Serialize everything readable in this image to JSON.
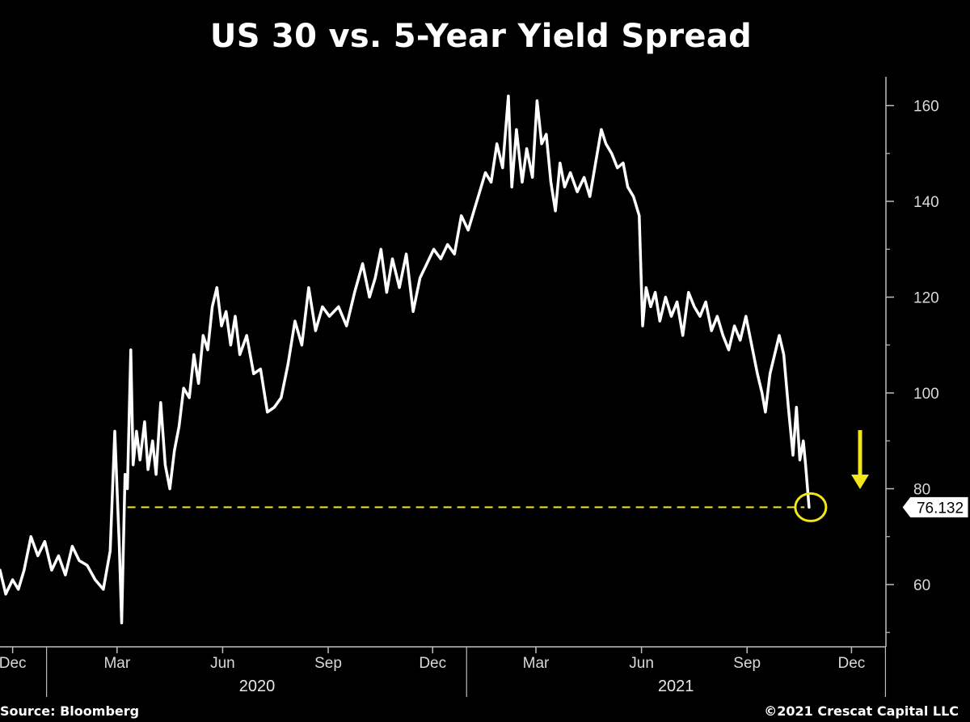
{
  "chart_data": {
    "type": "line",
    "title": "US 30 vs. 5-Year Yield Spread",
    "xlabel": "",
    "ylabel": "",
    "x_range": [
      "2019-11-20",
      "2021-12-31"
    ],
    "ylim": [
      47,
      166
    ],
    "y_ticks": [
      60,
      80,
      100,
      120,
      140,
      160
    ],
    "month_ticks": [
      {
        "date": "2019-12-01",
        "label": "Dec"
      },
      {
        "date": "2020-03-01",
        "label": "Mar"
      },
      {
        "date": "2020-06-01",
        "label": "Jun"
      },
      {
        "date": "2020-09-01",
        "label": "Sep"
      },
      {
        "date": "2020-12-01",
        "label": "Dec"
      },
      {
        "date": "2021-03-01",
        "label": "Mar"
      },
      {
        "date": "2021-06-01",
        "label": "Jun"
      },
      {
        "date": "2021-09-01",
        "label": "Sep"
      },
      {
        "date": "2021-12-01",
        "label": "Dec"
      }
    ],
    "year_labels": [
      {
        "date": "2020-07-01",
        "label": "2020"
      },
      {
        "date": "2021-07-01",
        "label": "2021"
      }
    ],
    "grid": false,
    "series": [
      {
        "color": "#ffffff",
        "points": [
          [
            "2019-11-20",
            63
          ],
          [
            "2019-11-25",
            58
          ],
          [
            "2019-12-01",
            61
          ],
          [
            "2019-12-06",
            59
          ],
          [
            "2019-12-11",
            63
          ],
          [
            "2019-12-17",
            70
          ],
          [
            "2019-12-23",
            66
          ],
          [
            "2019-12-29",
            69
          ],
          [
            "2020-01-04",
            63
          ],
          [
            "2020-01-10",
            66
          ],
          [
            "2020-01-16",
            62
          ],
          [
            "2020-01-22",
            68
          ],
          [
            "2020-01-28",
            65
          ],
          [
            "2020-02-04",
            64
          ],
          [
            "2020-02-11",
            61
          ],
          [
            "2020-02-18",
            59
          ],
          [
            "2020-02-24",
            67
          ],
          [
            "2020-02-28",
            92
          ],
          [
            "2020-03-03",
            68
          ],
          [
            "2020-03-05",
            52
          ],
          [
            "2020-03-08",
            83
          ],
          [
            "2020-03-10",
            80
          ],
          [
            "2020-03-13",
            109
          ],
          [
            "2020-03-15",
            85
          ],
          [
            "2020-03-18",
            92
          ],
          [
            "2020-03-21",
            86
          ],
          [
            "2020-03-25",
            94
          ],
          [
            "2020-03-28",
            84
          ],
          [
            "2020-04-01",
            90
          ],
          [
            "2020-04-04",
            83
          ],
          [
            "2020-04-08",
            98
          ],
          [
            "2020-04-12",
            85
          ],
          [
            "2020-04-16",
            80
          ],
          [
            "2020-04-20",
            88
          ],
          [
            "2020-04-24",
            93
          ],
          [
            "2020-04-28",
            101
          ],
          [
            "2020-05-03",
            99
          ],
          [
            "2020-05-07",
            108
          ],
          [
            "2020-05-11",
            102
          ],
          [
            "2020-05-15",
            112
          ],
          [
            "2020-05-19",
            109
          ],
          [
            "2020-05-23",
            118
          ],
          [
            "2020-05-27",
            122
          ],
          [
            "2020-05-31",
            114
          ],
          [
            "2020-06-04",
            117
          ],
          [
            "2020-06-08",
            110
          ],
          [
            "2020-06-12",
            116
          ],
          [
            "2020-06-16",
            108
          ],
          [
            "2020-06-22",
            112
          ],
          [
            "2020-06-28",
            104
          ],
          [
            "2020-07-04",
            105
          ],
          [
            "2020-07-10",
            96
          ],
          [
            "2020-07-16",
            97
          ],
          [
            "2020-07-22",
            99
          ],
          [
            "2020-07-28",
            106
          ],
          [
            "2020-08-03",
            115
          ],
          [
            "2020-08-09",
            110
          ],
          [
            "2020-08-15",
            122
          ],
          [
            "2020-08-21",
            113
          ],
          [
            "2020-08-27",
            118
          ],
          [
            "2020-09-02",
            116
          ],
          [
            "2020-09-10",
            118
          ],
          [
            "2020-09-17",
            114
          ],
          [
            "2020-09-24",
            121
          ],
          [
            "2020-10-01",
            127
          ],
          [
            "2020-10-07",
            120
          ],
          [
            "2020-10-12",
            124
          ],
          [
            "2020-10-17",
            130
          ],
          [
            "2020-10-22",
            121
          ],
          [
            "2020-10-27",
            128
          ],
          [
            "2020-11-02",
            122
          ],
          [
            "2020-11-08",
            129
          ],
          [
            "2020-11-14",
            117
          ],
          [
            "2020-11-20",
            124
          ],
          [
            "2020-11-26",
            127
          ],
          [
            "2020-12-02",
            130
          ],
          [
            "2020-12-08",
            128
          ],
          [
            "2020-12-14",
            131
          ],
          [
            "2020-12-20",
            129
          ],
          [
            "2020-12-26",
            137
          ],
          [
            "2021-01-01",
            134
          ],
          [
            "2021-01-06",
            138
          ],
          [
            "2021-01-11",
            142
          ],
          [
            "2021-01-16",
            146
          ],
          [
            "2021-01-21",
            144
          ],
          [
            "2021-01-26",
            152
          ],
          [
            "2021-01-31",
            147
          ],
          [
            "2021-02-05",
            162
          ],
          [
            "2021-02-08",
            143
          ],
          [
            "2021-02-12",
            155
          ],
          [
            "2021-02-17",
            144
          ],
          [
            "2021-02-21",
            151
          ],
          [
            "2021-02-26",
            145
          ],
          [
            "2021-03-02",
            161
          ],
          [
            "2021-03-06",
            152
          ],
          [
            "2021-03-10",
            154
          ],
          [
            "2021-03-14",
            144
          ],
          [
            "2021-03-18",
            138
          ],
          [
            "2021-03-22",
            148
          ],
          [
            "2021-03-26",
            143
          ],
          [
            "2021-03-31",
            146
          ],
          [
            "2021-04-06",
            142
          ],
          [
            "2021-04-12",
            145
          ],
          [
            "2021-04-17",
            141
          ],
          [
            "2021-04-22",
            148
          ],
          [
            "2021-04-27",
            155
          ],
          [
            "2021-05-01",
            152
          ],
          [
            "2021-05-06",
            150
          ],
          [
            "2021-05-11",
            147
          ],
          [
            "2021-05-16",
            148
          ],
          [
            "2021-05-20",
            143
          ],
          [
            "2021-05-25",
            141
          ],
          [
            "2021-05-30",
            137
          ],
          [
            "2021-06-02",
            114
          ],
          [
            "2021-06-05",
            122
          ],
          [
            "2021-06-09",
            118
          ],
          [
            "2021-06-13",
            121
          ],
          [
            "2021-06-17",
            115
          ],
          [
            "2021-06-22",
            120
          ],
          [
            "2021-06-27",
            116
          ],
          [
            "2021-07-02",
            119
          ],
          [
            "2021-07-07",
            112
          ],
          [
            "2021-07-12",
            121
          ],
          [
            "2021-07-17",
            118
          ],
          [
            "2021-07-22",
            116
          ],
          [
            "2021-07-27",
            119
          ],
          [
            "2021-08-01",
            113
          ],
          [
            "2021-08-06",
            116
          ],
          [
            "2021-08-11",
            112
          ],
          [
            "2021-08-16",
            109
          ],
          [
            "2021-08-21",
            114
          ],
          [
            "2021-08-26",
            111
          ],
          [
            "2021-08-31",
            116
          ],
          [
            "2021-09-05",
            110
          ],
          [
            "2021-09-10",
            104
          ],
          [
            "2021-09-14",
            100
          ],
          [
            "2021-09-17",
            96
          ],
          [
            "2021-09-21",
            104
          ],
          [
            "2021-09-25",
            108
          ],
          [
            "2021-09-29",
            112
          ],
          [
            "2021-10-03",
            108
          ],
          [
            "2021-10-07",
            97
          ],
          [
            "2021-10-11",
            87
          ],
          [
            "2021-10-14",
            97
          ],
          [
            "2021-10-17",
            86
          ],
          [
            "2021-10-20",
            90
          ],
          [
            "2021-10-22",
            85
          ],
          [
            "2021-10-25",
            76.132
          ]
        ]
      }
    ],
    "annotations": {
      "last_value_label": "76.132",
      "reference_line_value": 76.132,
      "reference_line_start": "2020-03-10",
      "reference_line_end": "2021-10-21",
      "reference_line_color": "#f2e51a",
      "circle_marker": {
        "date": "2021-10-25",
        "value": 76.132,
        "color": "#f2e51a"
      },
      "arrow": {
        "direction": "down",
        "color": "#f2e51a"
      }
    }
  },
  "footer": {
    "source": "Source: Bloomberg",
    "copyright": "©2021 Crescat Capital LLC"
  }
}
